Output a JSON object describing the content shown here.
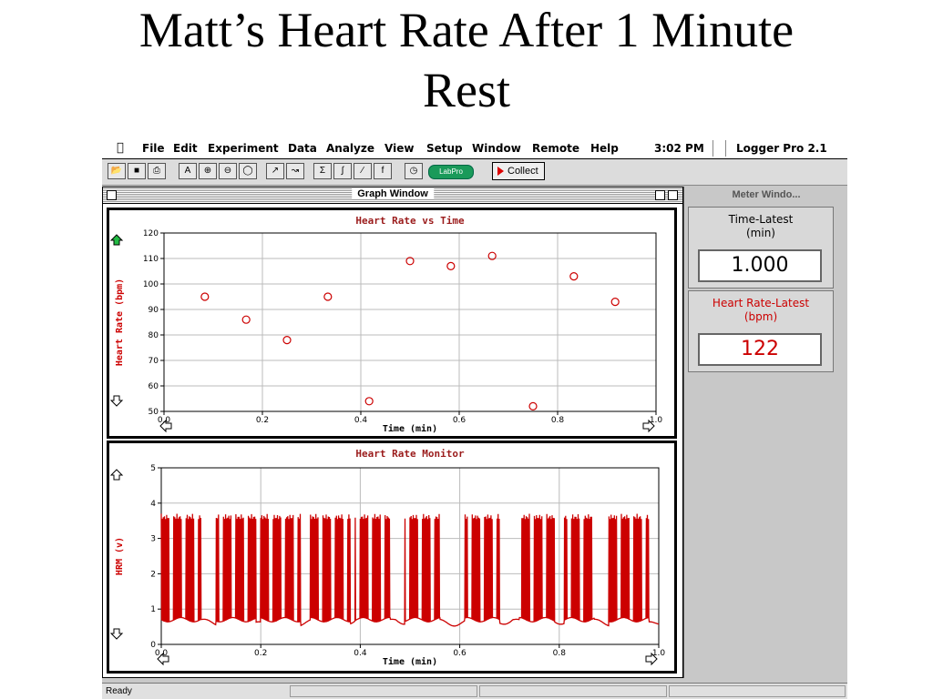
{
  "slide": {
    "title_line1": "Matt’s Heart Rate After 1 Minute",
    "title_line2": "Rest"
  },
  "menubar": {
    "items": [
      "File",
      "Edit",
      "Experiment",
      "Data",
      "Analyze",
      "View",
      "Setup",
      "Window",
      "Remote",
      "Help"
    ],
    "clock": "3:02 PM",
    "app_name": "Logger Pro 2.1"
  },
  "toolbar": {
    "labpro_label": "LabPro",
    "collect_label": "Collect"
  },
  "graph_window": {
    "title": "Graph Window"
  },
  "colors": {
    "accent_red": "#cc0000",
    "title_red": "#9b1c1c"
  },
  "chart_data": [
    {
      "type": "scatter",
      "title": "Heart Rate vs Time",
      "xlabel": "Time (min)",
      "ylabel": "Heart Rate (bpm)",
      "xlim": [
        0.0,
        1.0
      ],
      "ylim": [
        50,
        120
      ],
      "x_ticks": [
        "0.0",
        "0.2",
        "0.4",
        "0.6",
        "0.8",
        "1.0"
      ],
      "y_ticks": [
        "50",
        "60",
        "70",
        "80",
        "90",
        "100",
        "110",
        "120"
      ],
      "grid": true,
      "points": [
        {
          "x": 0.083,
          "y": 95
        },
        {
          "x": 0.167,
          "y": 86
        },
        {
          "x": 0.25,
          "y": 78
        },
        {
          "x": 0.333,
          "y": 95
        },
        {
          "x": 0.417,
          "y": 54
        },
        {
          "x": 0.5,
          "y": 109
        },
        {
          "x": 0.583,
          "y": 107
        },
        {
          "x": 0.667,
          "y": 111
        },
        {
          "x": 0.75,
          "y": 52
        },
        {
          "x": 0.833,
          "y": 103
        },
        {
          "x": 0.917,
          "y": 93
        }
      ]
    },
    {
      "type": "line",
      "title": "Heart Rate Monitor",
      "xlabel": "Time (min)",
      "ylabel": "HRM (v)",
      "xlim": [
        0.0,
        1.0
      ],
      "ylim": [
        0,
        5
      ],
      "x_ticks": [
        "0.0",
        "0.2",
        "0.4",
        "0.6",
        "0.8",
        "1.0"
      ],
      "y_ticks": [
        "0",
        "1",
        "2",
        "3",
        "4",
        "5"
      ],
      "grid": true,
      "baseline_v": 0.7,
      "peak_v": 3.7,
      "bursts": [
        {
          "start": 0.0,
          "end": 0.08
        },
        {
          "start": 0.11,
          "end": 0.19
        },
        {
          "start": 0.2,
          "end": 0.28
        },
        {
          "start": 0.3,
          "end": 0.38
        },
        {
          "start": 0.39,
          "end": 0.46
        },
        {
          "start": 0.49,
          "end": 0.56
        },
        {
          "start": 0.61,
          "end": 0.68
        },
        {
          "start": 0.72,
          "end": 0.79
        },
        {
          "start": 0.81,
          "end": 0.87
        },
        {
          "start": 0.9,
          "end": 0.98
        }
      ]
    }
  ],
  "meter_window": {
    "title": "Meter Windo...",
    "meters": [
      {
        "label_line1": "Time-Latest",
        "label_line2": "(min)",
        "value": "1.000"
      },
      {
        "label_line1": "Heart Rate-Latest",
        "label_line2": "(bpm)",
        "value": "122"
      }
    ]
  },
  "status": {
    "text": "Ready"
  }
}
